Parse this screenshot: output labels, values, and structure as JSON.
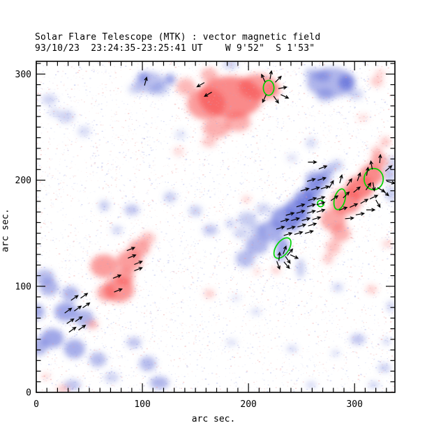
{
  "chart_data": {
    "type": "heatmap",
    "title": "Solar Flare Telescope (MTK) : vector magnetic field",
    "subtitle": "93/10/23  23:24:35-23:25:41 UT    W 9'52\"  S 1'53\"",
    "xlabel": "arc sec.",
    "ylabel": "arc sec.",
    "xlim": [
      0,
      338
    ],
    "ylim": [
      0,
      312
    ],
    "x_major_ticks": [
      0,
      100,
      200,
      300
    ],
    "y_major_ticks": [
      0,
      100,
      200,
      300
    ],
    "x_minor_step": 10,
    "y_minor_step": 10,
    "grid": false,
    "legend_position": "none",
    "colors": {
      "positive_polarity": "#f84d4d",
      "negative_polarity": "#5f6cd8",
      "noise_positive": "#f09a9a",
      "noise_negative": "#9fa8e8",
      "contour": "#00d400",
      "vector": "#000000",
      "frame": "#000000"
    },
    "positive_blobs": [
      [
        183,
        278,
        30,
        20,
        0.65
      ],
      [
        160,
        272,
        18,
        15,
        0.55
      ],
      [
        209,
        288,
        18,
        12,
        0.55
      ],
      [
        170,
        249,
        13,
        9,
        0.45
      ],
      [
        190,
        255,
        12,
        9,
        0.45
      ],
      [
        141,
        288,
        9,
        8,
        0.4
      ],
      [
        163,
        299,
        8,
        7,
        0.4
      ],
      [
        222,
        285,
        8,
        8,
        0.5
      ],
      [
        163,
        236,
        7,
        5,
        0.3
      ],
      [
        134,
        227,
        5,
        4,
        0.22
      ],
      [
        64,
        119,
        13,
        11,
        0.55
      ],
      [
        88,
        124,
        12,
        10,
        0.55
      ],
      [
        78,
        97,
        14,
        12,
        0.6
      ],
      [
        97,
        136,
        10,
        8,
        0.5
      ],
      [
        105,
        145,
        7,
        6,
        0.35
      ],
      [
        66,
        94,
        9,
        8,
        0.5
      ],
      [
        83,
        109,
        9,
        8,
        0.55
      ],
      [
        280,
        163,
        12,
        11,
        0.5
      ],
      [
        292,
        180,
        14,
        12,
        0.65
      ],
      [
        305,
        193,
        13,
        11,
        0.7
      ],
      [
        316,
        205,
        11,
        10,
        0.65
      ],
      [
        323,
        218,
        8,
        7,
        0.5
      ],
      [
        287,
        150,
        9,
        8,
        0.45
      ],
      [
        280,
        137,
        7,
        7,
        0.35
      ],
      [
        275,
        126,
        5,
        5,
        0.3
      ],
      [
        329,
        236,
        5,
        5,
        0.3
      ],
      [
        321,
        227,
        5,
        5,
        0.35
      ],
      [
        198,
        182,
        4,
        3,
        0.3
      ],
      [
        53,
        64,
        5,
        4,
        0.45
      ],
      [
        25,
        3,
        6,
        4,
        0.3
      ],
      [
        9,
        15,
        4,
        3,
        0.25
      ],
      [
        316,
        97,
        5,
        4,
        0.3
      ],
      [
        163,
        93,
        5,
        4,
        0.3
      ],
      [
        208,
        114,
        3,
        3,
        0.25
      ],
      [
        226,
        115,
        4,
        3,
        0.35
      ],
      [
        321,
        293,
        6,
        5,
        0.3
      ],
      [
        324,
        301,
        5,
        3,
        0.25
      ],
      [
        308,
        259,
        5,
        3,
        0.22
      ],
      [
        331,
        140,
        5,
        3,
        0.28
      ]
    ],
    "negative_blobs": [
      [
        107,
        292,
        14,
        10,
        0.4
      ],
      [
        101,
        297,
        5,
        5,
        0.6
      ],
      [
        126,
        295,
        5,
        5,
        0.65
      ],
      [
        116,
        286,
        9,
        6,
        0.35
      ],
      [
        93,
        286,
        6,
        5,
        0.3
      ],
      [
        12,
        276,
        7,
        5,
        0.3
      ],
      [
        28,
        260,
        8,
        6,
        0.3
      ],
      [
        45,
        246,
        6,
        5,
        0.25
      ],
      [
        17,
        264,
        5,
        4,
        0.25
      ],
      [
        278,
        292,
        23,
        14,
        0.5
      ],
      [
        292,
        292,
        7,
        7,
        0.75
      ],
      [
        270,
        298,
        7,
        5,
        0.5
      ],
      [
        272,
        280,
        8,
        6,
        0.4
      ],
      [
        301,
        281,
        7,
        5,
        0.3
      ],
      [
        259,
        301,
        6,
        5,
        0.35
      ],
      [
        64,
        176,
        5,
        5,
        0.35
      ],
      [
        90,
        172,
        7,
        5,
        0.4
      ],
      [
        76,
        153,
        5,
        4,
        0.3
      ],
      [
        126,
        184,
        6,
        5,
        0.35
      ],
      [
        150,
        171,
        6,
        5,
        0.35
      ],
      [
        164,
        153,
        7,
        5,
        0.4
      ],
      [
        183,
        159,
        5,
        4,
        0.3
      ],
      [
        259,
        235,
        5,
        5,
        0.25
      ],
      [
        241,
        221,
        5,
        4,
        0.2
      ],
      [
        183,
        309,
        7,
        4,
        0.35
      ],
      [
        136,
        243,
        5,
        4,
        0.22
      ],
      [
        197,
        126,
        9,
        8,
        0.45
      ],
      [
        208,
        139,
        11,
        9,
        0.5
      ],
      [
        221,
        152,
        12,
        10,
        0.55
      ],
      [
        234,
        164,
        13,
        11,
        0.65
      ],
      [
        245,
        173,
        11,
        9,
        0.7
      ],
      [
        253,
        182,
        10,
        9,
        0.7
      ],
      [
        261,
        191,
        9,
        8,
        0.65
      ],
      [
        263,
        201,
        9,
        7,
        0.6
      ],
      [
        271,
        201,
        7,
        7,
        0.5
      ],
      [
        275,
        209,
        6,
        5,
        0.45
      ],
      [
        251,
        166,
        6,
        5,
        0.75
      ],
      [
        242,
        159,
        8,
        7,
        0.6
      ],
      [
        199,
        163,
        9,
        7,
        0.35
      ],
      [
        208,
        153,
        7,
        6,
        0.35
      ],
      [
        193,
        150,
        7,
        5,
        0.3
      ],
      [
        214,
        173,
        7,
        5,
        0.3
      ],
      [
        232,
        137,
        6,
        9,
        0.6
      ],
      [
        230,
        128,
        4,
        5,
        0.5
      ],
      [
        283,
        214,
        6,
        5,
        0.35
      ],
      [
        257,
        181,
        5,
        4,
        0.75
      ],
      [
        333,
        206,
        5,
        8,
        0.4
      ],
      [
        334,
        187,
        5,
        7,
        0.35
      ],
      [
        336,
        218,
        4,
        5,
        0.3
      ],
      [
        12,
        99,
        9,
        8,
        0.5
      ],
      [
        0,
        76,
        8,
        7,
        0.55
      ],
      [
        28,
        76,
        11,
        9,
        0.6
      ],
      [
        15,
        51,
        11,
        9,
        0.6
      ],
      [
        45,
        70,
        9,
        8,
        0.5
      ],
      [
        36,
        41,
        10,
        9,
        0.55
      ],
      [
        32,
        93,
        8,
        7,
        0.5
      ],
      [
        2,
        43,
        9,
        8,
        0.5
      ],
      [
        58,
        31,
        8,
        7,
        0.45
      ],
      [
        71,
        14,
        7,
        5,
        0.3
      ],
      [
        8,
        109,
        9,
        7,
        0.45
      ],
      [
        92,
        47,
        7,
        5,
        0.4
      ],
      [
        105,
        27,
        8,
        7,
        0.45
      ],
      [
        116,
        9,
        9,
        6,
        0.5
      ],
      [
        34,
        7,
        8,
        5,
        0.4
      ],
      [
        249,
        117,
        4,
        9,
        0.35
      ],
      [
        284,
        99,
        5,
        4,
        0.3
      ],
      [
        184,
        47,
        5,
        3,
        0.25
      ],
      [
        241,
        41,
        5,
        3,
        0.3
      ],
      [
        303,
        50,
        7,
        5,
        0.4
      ],
      [
        330,
        48,
        4,
        3,
        0.3
      ],
      [
        328,
        23,
        6,
        4,
        0.35
      ],
      [
        318,
        7,
        5,
        3,
        0.35
      ],
      [
        282,
        37,
        4,
        3,
        0.25
      ],
      [
        334,
        81,
        4,
        5,
        0.3
      ],
      [
        259,
        7,
        5,
        3,
        0.3
      ],
      [
        207,
        76,
        5,
        3,
        0.25
      ],
      [
        188,
        89,
        4,
        3,
        0.2
      ]
    ],
    "contours": [
      [
        219,
        287,
        5,
        7,
        0
      ],
      [
        268,
        178,
        3,
        3,
        0
      ],
      [
        286,
        182,
        5,
        10,
        15
      ],
      [
        318,
        201,
        9,
        10,
        0
      ],
      [
        232,
        136,
        6,
        11,
        35
      ]
    ],
    "vectors": [
      [
        260,
        182,
        17
      ],
      [
        268,
        183,
        17
      ],
      [
        249,
        176,
        17
      ],
      [
        259,
        176,
        17
      ],
      [
        268,
        178,
        17
      ],
      [
        239,
        168,
        17
      ],
      [
        249,
        170,
        17
      ],
      [
        259,
        170,
        17
      ],
      [
        268,
        171,
        17
      ],
      [
        234,
        162,
        17
      ],
      [
        244,
        163,
        17
      ],
      [
        254,
        163,
        17
      ],
      [
        264,
        164,
        17
      ],
      [
        230,
        155,
        17
      ],
      [
        240,
        155,
        17
      ],
      [
        250,
        157,
        17
      ],
      [
        260,
        158,
        17
      ],
      [
        237,
        149,
        17
      ],
      [
        247,
        150,
        17
      ],
      [
        257,
        151,
        17
      ],
      [
        253,
        191,
        17
      ],
      [
        263,
        192,
        17
      ],
      [
        272,
        193,
        17
      ],
      [
        259,
        200,
        17
      ],
      [
        269,
        201,
        17
      ],
      [
        260,
        217,
        0
      ],
      [
        270,
        212,
        20
      ],
      [
        234,
        134,
        70
      ],
      [
        239,
        132,
        50
      ],
      [
        229,
        128,
        85
      ],
      [
        237,
        125,
        -55
      ],
      [
        243,
        128,
        -25
      ],
      [
        228,
        120,
        -70
      ],
      [
        236,
        120,
        -50
      ],
      [
        278,
        196,
        60
      ],
      [
        287,
        201,
        75
      ],
      [
        295,
        198,
        55
      ],
      [
        304,
        203,
        70
      ],
      [
        312,
        208,
        80
      ],
      [
        281,
        183,
        35
      ],
      [
        292,
        186,
        45
      ],
      [
        302,
        191,
        40
      ],
      [
        313,
        194,
        55
      ],
      [
        289,
        173,
        20
      ],
      [
        299,
        176,
        25
      ],
      [
        309,
        180,
        30
      ],
      [
        318,
        184,
        25
      ],
      [
        295,
        164,
        5
      ],
      [
        305,
        168,
        10
      ],
      [
        315,
        172,
        0
      ],
      [
        324,
        220,
        85
      ],
      [
        332,
        211,
        40
      ],
      [
        334,
        198,
        -15
      ],
      [
        329,
        188,
        -40
      ],
      [
        322,
        178,
        -60
      ],
      [
        316,
        214,
        100
      ],
      [
        325,
        191,
        -30
      ],
      [
        318,
        194,
        -80
      ],
      [
        214,
        296,
        115
      ],
      [
        221,
        299,
        80
      ],
      [
        228,
        295,
        45
      ],
      [
        232,
        287,
        10
      ],
      [
        226,
        276,
        -55
      ],
      [
        215,
        277,
        -115
      ],
      [
        234,
        279,
        -25
      ],
      [
        155,
        290,
        210
      ],
      [
        162,
        281,
        210
      ],
      [
        103,
        293,
        75
      ],
      [
        36,
        89,
        35
      ],
      [
        45,
        91,
        35
      ],
      [
        30,
        77,
        35
      ],
      [
        39,
        79,
        35
      ],
      [
        47,
        82,
        35
      ],
      [
        32,
        67,
        35
      ],
      [
        40,
        69,
        35
      ],
      [
        34,
        59,
        35
      ],
      [
        43,
        61,
        35
      ],
      [
        89,
        135,
        22
      ],
      [
        90,
        128,
        22
      ],
      [
        96,
        122,
        22
      ],
      [
        96,
        116,
        22
      ],
      [
        76,
        109,
        22
      ],
      [
        77,
        96,
        22
      ]
    ],
    "noise": {
      "seed": 7,
      "base_count": 6500,
      "negative_fraction": 0.55,
      "fringe_density": 0.25
    }
  }
}
